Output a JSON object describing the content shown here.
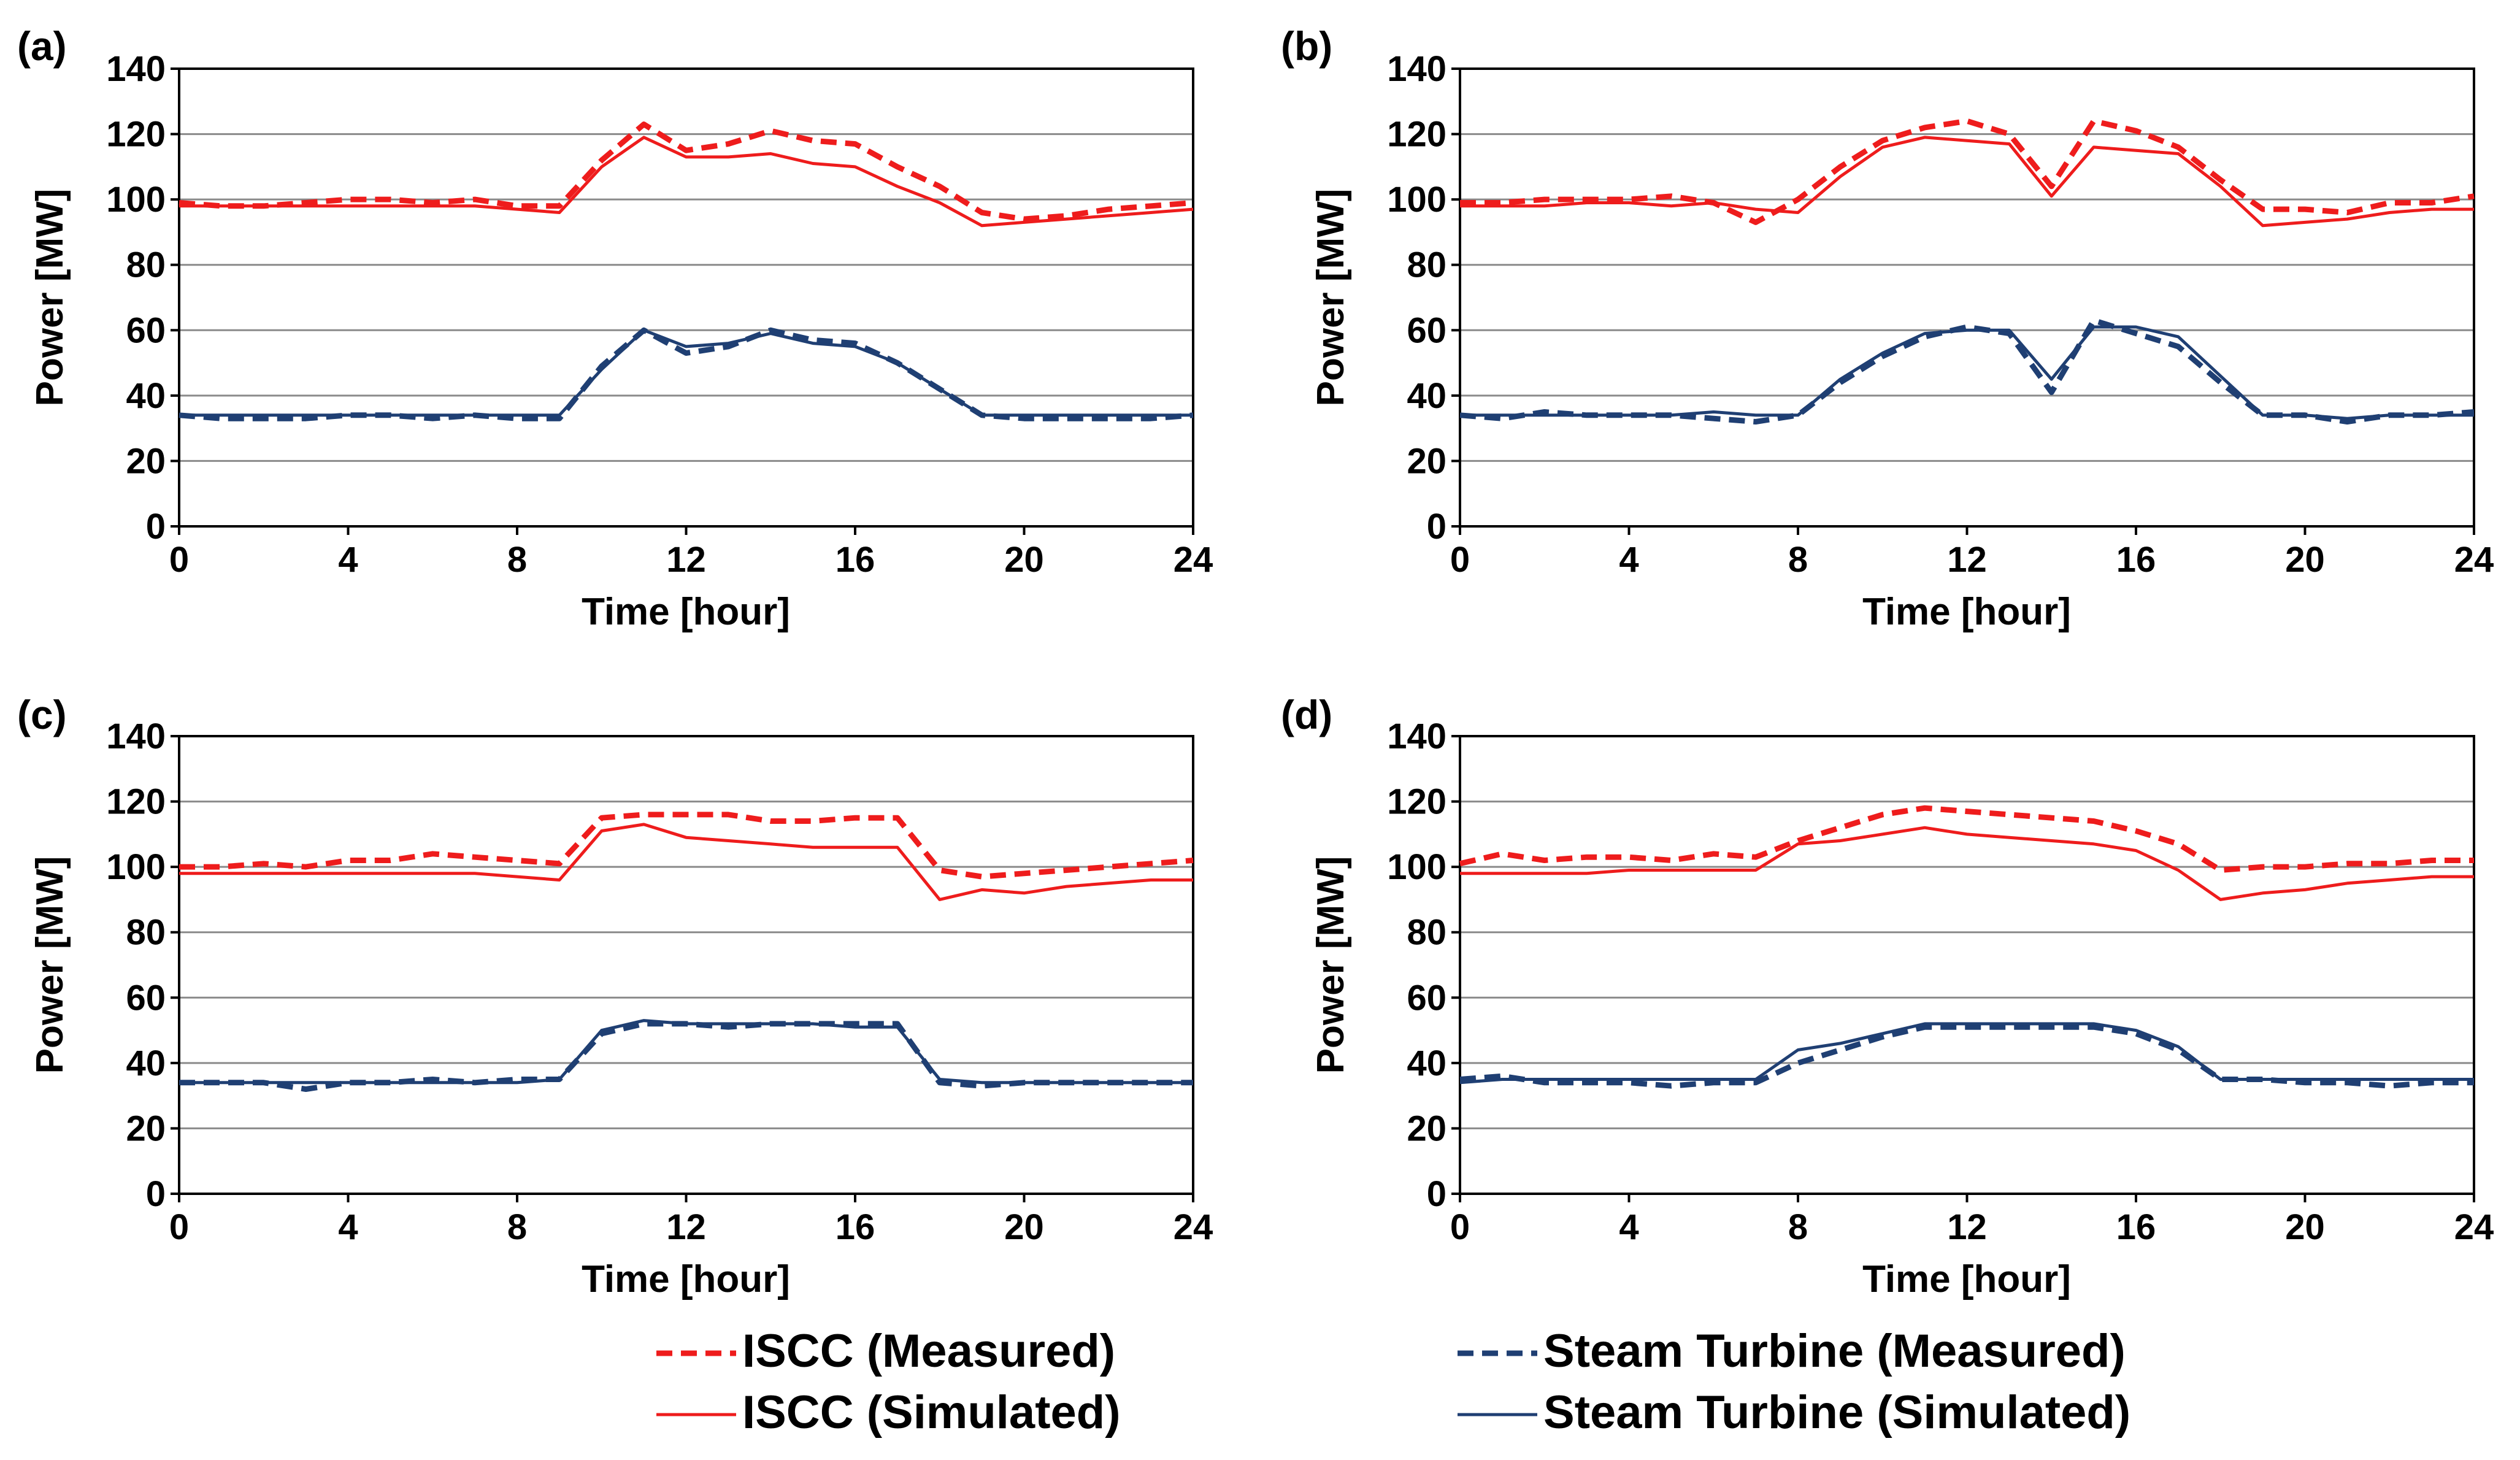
{
  "figure": {
    "colors": {
      "iscc": "#ee1c1c",
      "steam": "#1f3f73",
      "grid": "#8a8a8a"
    }
  },
  "legend": [
    {
      "label": "ISCC (Measured)",
      "series": "iscc_measured"
    },
    {
      "label": "ISCC (Simulated)",
      "series": "iscc_simulated"
    },
    {
      "label": "Steam Turbine (Measured)",
      "series": "steam_measured"
    },
    {
      "label": "Steam Turbine (Simulated)",
      "series": "steam_simulated"
    }
  ],
  "chart_data": [
    {
      "type": "line",
      "panel_label": "(a)",
      "xlabel": "Time [hour]",
      "ylabel": "Power [MW]",
      "xlim": [
        0,
        24
      ],
      "ylim": [
        0,
        140
      ],
      "xticks": [
        0,
        4,
        8,
        12,
        16,
        20,
        24
      ],
      "yticks": [
        0,
        20,
        40,
        60,
        80,
        100,
        120,
        140
      ],
      "grid": "horizontal",
      "series": [
        {
          "name": "ISCC (Measured)",
          "key": "iscc_measured",
          "style": "dashed",
          "color": "#ee1c1c",
          "x": [
            0,
            1,
            2,
            3,
            4,
            5,
            6,
            7,
            8,
            9,
            10,
            11,
            12,
            13,
            14,
            15,
            16,
            17,
            18,
            19,
            20,
            21,
            22,
            23,
            24
          ],
          "y": [
            99,
            98,
            98,
            99,
            100,
            100,
            99,
            100,
            98,
            98,
            112,
            123,
            115,
            117,
            121,
            118,
            117,
            110,
            104,
            96,
            94,
            95,
            97,
            98,
            99
          ]
        },
        {
          "name": "ISCC (Simulated)",
          "key": "iscc_simulated",
          "style": "solid",
          "color": "#ee1c1c",
          "x": [
            0,
            1,
            2,
            3,
            4,
            5,
            6,
            7,
            8,
            9,
            10,
            11,
            12,
            13,
            14,
            15,
            16,
            17,
            18,
            19,
            20,
            21,
            22,
            23,
            24
          ],
          "y": [
            98,
            98,
            98,
            98,
            98,
            98,
            98,
            98,
            97,
            96,
            110,
            119,
            113,
            113,
            114,
            111,
            110,
            104,
            99,
            92,
            93,
            94,
            95,
            96,
            97
          ]
        },
        {
          "name": "Steam Turbine (Measured)",
          "key": "steam_measured",
          "style": "dashed",
          "color": "#1f3f73",
          "x": [
            0,
            1,
            2,
            3,
            4,
            5,
            6,
            7,
            8,
            9,
            10,
            11,
            12,
            13,
            14,
            15,
            16,
            17,
            18,
            19,
            20,
            21,
            22,
            23,
            24
          ],
          "y": [
            34,
            33,
            33,
            33,
            34,
            34,
            33,
            34,
            33,
            33,
            49,
            60,
            53,
            55,
            60,
            57,
            56,
            50,
            42,
            34,
            33,
            33,
            33,
            33,
            34
          ]
        },
        {
          "name": "Steam Turbine (Simulated)",
          "key": "steam_simulated",
          "style": "solid",
          "color": "#1f3f73",
          "x": [
            0,
            1,
            2,
            3,
            4,
            5,
            6,
            7,
            8,
            9,
            10,
            11,
            12,
            13,
            14,
            15,
            16,
            17,
            18,
            19,
            20,
            21,
            22,
            23,
            24
          ],
          "y": [
            34,
            34,
            34,
            34,
            34,
            34,
            34,
            34,
            34,
            34,
            48,
            60,
            55,
            56,
            59,
            56,
            55,
            50,
            42,
            34,
            34,
            34,
            34,
            34,
            34
          ]
        }
      ]
    },
    {
      "type": "line",
      "panel_label": "(b)",
      "xlabel": "Time [hour]",
      "ylabel": "Power [MW]",
      "xlim": [
        0,
        24
      ],
      "ylim": [
        0,
        140
      ],
      "xticks": [
        0,
        4,
        8,
        12,
        16,
        20,
        24
      ],
      "yticks": [
        0,
        20,
        40,
        60,
        80,
        100,
        120,
        140
      ],
      "grid": "horizontal",
      "series": [
        {
          "name": "ISCC (Measured)",
          "key": "iscc_measured",
          "style": "dashed",
          "color": "#ee1c1c",
          "x": [
            0,
            1,
            2,
            3,
            4,
            5,
            6,
            7,
            8,
            9,
            10,
            11,
            12,
            13,
            14,
            15,
            16,
            17,
            18,
            19,
            20,
            21,
            22,
            23,
            24
          ],
          "y": [
            99,
            99,
            100,
            100,
            100,
            101,
            99,
            93,
            100,
            110,
            118,
            122,
            124,
            120,
            104,
            124,
            121,
            116,
            106,
            97,
            97,
            96,
            99,
            99,
            101
          ]
        },
        {
          "name": "ISCC (Simulated)",
          "key": "iscc_simulated",
          "style": "solid",
          "color": "#ee1c1c",
          "x": [
            0,
            1,
            2,
            3,
            4,
            5,
            6,
            7,
            8,
            9,
            10,
            11,
            12,
            13,
            14,
            15,
            16,
            17,
            18,
            19,
            20,
            21,
            22,
            23,
            24
          ],
          "y": [
            98,
            98,
            98,
            99,
            99,
            98,
            99,
            97,
            96,
            107,
            116,
            119,
            118,
            117,
            101,
            116,
            115,
            114,
            104,
            92,
            93,
            94,
            96,
            97,
            97
          ]
        },
        {
          "name": "Steam Turbine (Measured)",
          "key": "steam_measured",
          "style": "dashed",
          "color": "#1f3f73",
          "x": [
            0,
            1,
            2,
            3,
            4,
            5,
            6,
            7,
            8,
            9,
            10,
            11,
            12,
            13,
            14,
            15,
            16,
            17,
            18,
            19,
            20,
            21,
            22,
            23,
            24
          ],
          "y": [
            34,
            33,
            35,
            34,
            34,
            34,
            33,
            32,
            34,
            44,
            52,
            58,
            61,
            59,
            41,
            63,
            59,
            55,
            44,
            34,
            34,
            32,
            34,
            34,
            35
          ]
        },
        {
          "name": "Steam Turbine (Simulated)",
          "key": "steam_simulated",
          "style": "solid",
          "color": "#1f3f73",
          "x": [
            0,
            1,
            2,
            3,
            4,
            5,
            6,
            7,
            8,
            9,
            10,
            11,
            12,
            13,
            14,
            15,
            16,
            17,
            18,
            19,
            20,
            21,
            22,
            23,
            24
          ],
          "y": [
            34,
            34,
            34,
            34,
            34,
            34,
            35,
            34,
            34,
            45,
            53,
            59,
            60,
            60,
            45,
            61,
            61,
            58,
            46,
            34,
            34,
            33,
            34,
            34,
            34
          ]
        }
      ]
    },
    {
      "type": "line",
      "panel_label": "(c)",
      "xlabel": "Time [hour]",
      "ylabel": "Power [MW]",
      "xlim": [
        0,
        24
      ],
      "ylim": [
        0,
        140
      ],
      "xticks": [
        0,
        4,
        8,
        12,
        16,
        20,
        24
      ],
      "yticks": [
        0,
        20,
        40,
        60,
        80,
        100,
        120,
        140
      ],
      "grid": "horizontal",
      "series": [
        {
          "name": "ISCC (Measured)",
          "key": "iscc_measured",
          "style": "dashed",
          "color": "#ee1c1c",
          "x": [
            0,
            1,
            2,
            3,
            4,
            5,
            6,
            7,
            8,
            9,
            10,
            11,
            12,
            13,
            14,
            15,
            16,
            17,
            18,
            19,
            20,
            21,
            22,
            23,
            24
          ],
          "y": [
            100,
            100,
            101,
            100,
            102,
            102,
            104,
            103,
            102,
            101,
            115,
            116,
            116,
            116,
            114,
            114,
            115,
            115,
            99,
            97,
            98,
            99,
            100,
            101,
            102
          ]
        },
        {
          "name": "ISCC (Simulated)",
          "key": "iscc_simulated",
          "style": "solid",
          "color": "#ee1c1c",
          "x": [
            0,
            1,
            2,
            3,
            4,
            5,
            6,
            7,
            8,
            9,
            10,
            11,
            12,
            13,
            14,
            15,
            16,
            17,
            18,
            19,
            20,
            21,
            22,
            23,
            24
          ],
          "y": [
            98,
            98,
            98,
            98,
            98,
            98,
            98,
            98,
            97,
            96,
            111,
            113,
            109,
            108,
            107,
            106,
            106,
            106,
            90,
            93,
            92,
            94,
            95,
            96,
            96
          ]
        },
        {
          "name": "Steam Turbine (Measured)",
          "key": "steam_measured",
          "style": "dashed",
          "color": "#1f3f73",
          "x": [
            0,
            1,
            2,
            3,
            4,
            5,
            6,
            7,
            8,
            9,
            10,
            11,
            12,
            13,
            14,
            15,
            16,
            17,
            18,
            19,
            20,
            21,
            22,
            23,
            24
          ],
          "y": [
            34,
            34,
            34,
            32,
            34,
            34,
            35,
            34,
            35,
            35,
            49,
            52,
            52,
            51,
            52,
            52,
            52,
            52,
            34,
            33,
            34,
            34,
            34,
            34,
            34
          ]
        },
        {
          "name": "Steam Turbine (Simulated)",
          "key": "steam_simulated",
          "style": "solid",
          "color": "#1f3f73",
          "x": [
            0,
            1,
            2,
            3,
            4,
            5,
            6,
            7,
            8,
            9,
            10,
            11,
            12,
            13,
            14,
            15,
            16,
            17,
            18,
            19,
            20,
            21,
            22,
            23,
            24
          ],
          "y": [
            34,
            34,
            34,
            34,
            34,
            34,
            34,
            34,
            34,
            35,
            50,
            53,
            52,
            52,
            52,
            52,
            51,
            51,
            35,
            34,
            34,
            34,
            34,
            34,
            34
          ]
        }
      ]
    },
    {
      "type": "line",
      "panel_label": "(d)",
      "xlabel": "Time [hour]",
      "ylabel": "Power [MW]",
      "xlim": [
        0,
        24
      ],
      "ylim": [
        0,
        140
      ],
      "xticks": [
        0,
        4,
        8,
        12,
        16,
        20,
        24
      ],
      "yticks": [
        0,
        20,
        40,
        60,
        80,
        100,
        120,
        140
      ],
      "grid": "horizontal",
      "series": [
        {
          "name": "ISCC (Measured)",
          "key": "iscc_measured",
          "style": "dashed",
          "color": "#ee1c1c",
          "x": [
            0,
            1,
            2,
            3,
            4,
            5,
            6,
            7,
            8,
            9,
            10,
            11,
            12,
            13,
            14,
            15,
            16,
            17,
            18,
            19,
            20,
            21,
            22,
            23,
            24
          ],
          "y": [
            101,
            104,
            102,
            103,
            103,
            102,
            104,
            103,
            108,
            112,
            116,
            118,
            117,
            116,
            115,
            114,
            111,
            107,
            99,
            100,
            100,
            101,
            101,
            102,
            102
          ]
        },
        {
          "name": "ISCC (Simulated)",
          "key": "iscc_simulated",
          "style": "solid",
          "color": "#ee1c1c",
          "x": [
            0,
            1,
            2,
            3,
            4,
            5,
            6,
            7,
            8,
            9,
            10,
            11,
            12,
            13,
            14,
            15,
            16,
            17,
            18,
            19,
            20,
            21,
            22,
            23,
            24
          ],
          "y": [
            98,
            98,
            98,
            98,
            99,
            99,
            99,
            99,
            107,
            108,
            110,
            112,
            110,
            109,
            108,
            107,
            105,
            99,
            90,
            92,
            93,
            95,
            96,
            97,
            97
          ]
        },
        {
          "name": "Steam Turbine (Measured)",
          "key": "steam_measured",
          "style": "dashed",
          "color": "#1f3f73",
          "x": [
            0,
            1,
            2,
            3,
            4,
            5,
            6,
            7,
            8,
            9,
            10,
            11,
            12,
            13,
            14,
            15,
            16,
            17,
            18,
            19,
            20,
            21,
            22,
            23,
            24
          ],
          "y": [
            35,
            36,
            34,
            34,
            34,
            33,
            34,
            34,
            40,
            44,
            48,
            51,
            51,
            51,
            51,
            51,
            49,
            44,
            35,
            35,
            34,
            34,
            33,
            34,
            34
          ]
        },
        {
          "name": "Steam Turbine (Simulated)",
          "key": "steam_simulated",
          "style": "solid",
          "color": "#1f3f73",
          "x": [
            0,
            1,
            2,
            3,
            4,
            5,
            6,
            7,
            8,
            9,
            10,
            11,
            12,
            13,
            14,
            15,
            16,
            17,
            18,
            19,
            20,
            21,
            22,
            23,
            24
          ],
          "y": [
            34,
            35,
            35,
            35,
            35,
            35,
            35,
            35,
            44,
            46,
            49,
            52,
            52,
            52,
            52,
            52,
            50,
            45,
            35,
            35,
            35,
            35,
            35,
            35,
            35
          ]
        }
      ]
    }
  ]
}
